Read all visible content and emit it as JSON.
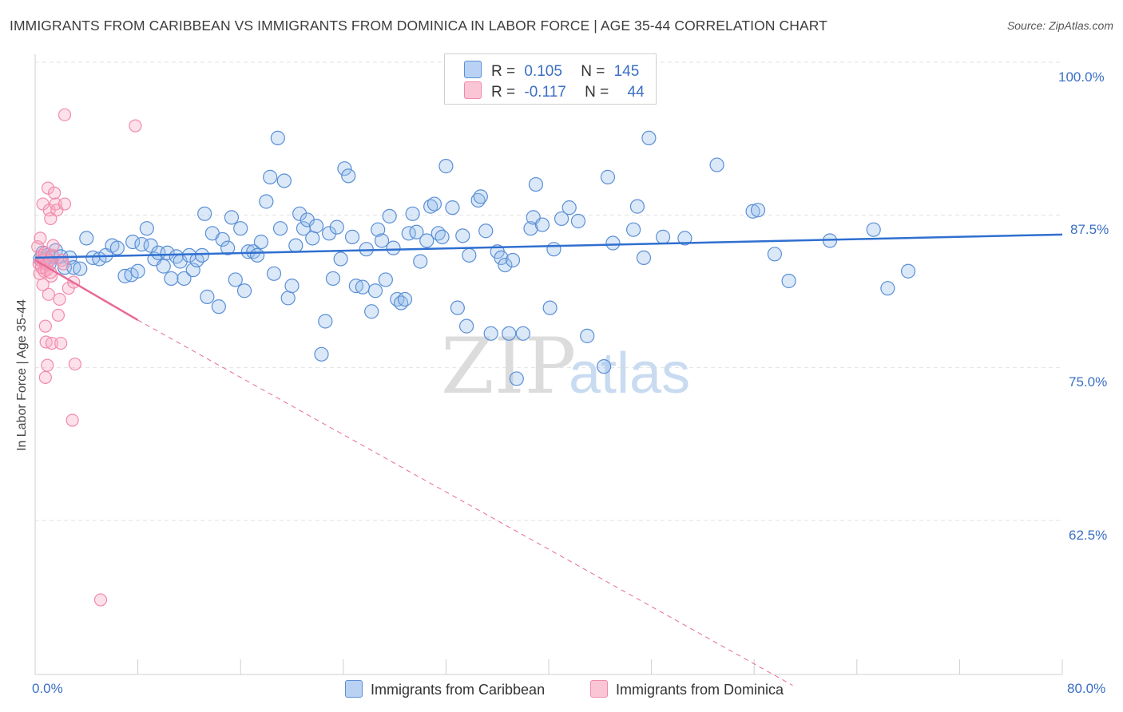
{
  "header": {
    "title": "IMMIGRANTS FROM CARIBBEAN VS IMMIGRANTS FROM DOMINICA IN LABOR FORCE | AGE 35-44 CORRELATION CHART",
    "source": "Source: ZipAtlas.com"
  },
  "watermark": {
    "zip": "ZIP",
    "atlas": "atlas"
  },
  "legend_top": {
    "caribbean": {
      "r_label": "R =",
      "r_value": "0.105",
      "n_label": "N =",
      "n_value": "145"
    },
    "dominica": {
      "r_label": "R =",
      "r_value": "-0.117",
      "n_label": "N =",
      "n_value": "44"
    }
  },
  "chart_data": {
    "type": "scatter",
    "title": "IMMIGRANTS FROM CARIBBEAN VS IMMIGRANTS FROM DOMINICA IN LABOR FORCE | AGE 35-44 CORRELATION CHART",
    "xlabel": "",
    "ylabel": "In Labor Force | Age 35-44",
    "xlim": [
      0,
      80
    ],
    "ylim": [
      50,
      102
    ],
    "x_tick_labels": [
      "0.0%",
      "80.0%"
    ],
    "y_ticks": [
      62.5,
      75.0,
      87.5,
      100.0
    ],
    "y_tick_labels": [
      "62.5%",
      "75.0%",
      "87.5%",
      "100.0%"
    ],
    "grid": "horizontal dashed",
    "legend_placement": "top-center and bottom",
    "colors": {
      "caribbean": "#5b8fd6",
      "caribbean_line": "#2f6fd0",
      "dominica": "#f28aab",
      "dominica_line": "#e86a94"
    },
    "series": [
      {
        "name": "Immigrants from Caribbean",
        "r": 0.105,
        "n": 145,
        "trend": {
          "x": [
            0,
            80
          ],
          "y": [
            84.0,
            85.9
          ]
        },
        "points": [
          [
            0.4,
            83.9
          ],
          [
            0.6,
            84.4
          ],
          [
            0.8,
            83.9
          ],
          [
            1.0,
            84.2
          ],
          [
            1.1,
            83.5
          ],
          [
            1.3,
            84.1
          ],
          [
            1.6,
            84.6
          ],
          [
            2.0,
            84.1
          ],
          [
            2.3,
            83.2
          ],
          [
            2.7,
            84.0
          ],
          [
            3.0,
            83.2
          ],
          [
            3.5,
            83.1
          ],
          [
            4.0,
            85.6
          ],
          [
            4.5,
            84.0
          ],
          [
            5.0,
            83.9
          ],
          [
            5.5,
            84.2
          ],
          [
            6.0,
            85.0
          ],
          [
            6.4,
            84.8
          ],
          [
            7.0,
            82.5
          ],
          [
            7.5,
            82.6
          ],
          [
            7.6,
            85.3
          ],
          [
            8.0,
            82.9
          ],
          [
            8.3,
            85.1
          ],
          [
            8.7,
            86.4
          ],
          [
            9.0,
            85.0
          ],
          [
            9.3,
            83.9
          ],
          [
            9.6,
            84.4
          ],
          [
            10.0,
            83.3
          ],
          [
            10.3,
            84.4
          ],
          [
            10.6,
            82.3
          ],
          [
            11.0,
            84.1
          ],
          [
            11.3,
            83.7
          ],
          [
            11.6,
            82.3
          ],
          [
            12.0,
            84.2
          ],
          [
            12.3,
            83.0
          ],
          [
            12.6,
            83.8
          ],
          [
            13.0,
            84.2
          ],
          [
            13.2,
            87.6
          ],
          [
            13.4,
            80.8
          ],
          [
            13.8,
            86.0
          ],
          [
            14.3,
            80.0
          ],
          [
            14.6,
            85.5
          ],
          [
            15.0,
            84.8
          ],
          [
            15.3,
            87.3
          ],
          [
            15.6,
            82.2
          ],
          [
            16.0,
            86.4
          ],
          [
            16.3,
            81.3
          ],
          [
            16.6,
            84.5
          ],
          [
            17.0,
            84.5
          ],
          [
            17.3,
            84.2
          ],
          [
            17.6,
            85.3
          ],
          [
            18.0,
            88.6
          ],
          [
            18.3,
            90.6
          ],
          [
            18.6,
            82.7
          ],
          [
            18.9,
            93.8
          ],
          [
            19.1,
            86.4
          ],
          [
            19.4,
            90.3
          ],
          [
            19.7,
            80.7
          ],
          [
            20.0,
            81.7
          ],
          [
            20.3,
            85.0
          ],
          [
            20.6,
            87.6
          ],
          [
            20.9,
            86.4
          ],
          [
            21.2,
            87.1
          ],
          [
            21.6,
            85.6
          ],
          [
            21.9,
            86.6
          ],
          [
            22.3,
            76.1
          ],
          [
            22.6,
            78.8
          ],
          [
            22.9,
            86.0
          ],
          [
            23.2,
            82.3
          ],
          [
            23.5,
            86.5
          ],
          [
            23.8,
            83.9
          ],
          [
            24.1,
            91.3
          ],
          [
            24.4,
            90.7
          ],
          [
            24.7,
            85.7
          ],
          [
            25.0,
            81.7
          ],
          [
            25.5,
            81.6
          ],
          [
            25.8,
            84.7
          ],
          [
            26.2,
            79.6
          ],
          [
            26.5,
            81.3
          ],
          [
            26.7,
            86.3
          ],
          [
            27.0,
            85.4
          ],
          [
            27.3,
            82.2
          ],
          [
            27.6,
            87.4
          ],
          [
            27.9,
            84.8
          ],
          [
            28.2,
            80.6
          ],
          [
            28.5,
            80.3
          ],
          [
            28.8,
            80.6
          ],
          [
            29.1,
            86.0
          ],
          [
            29.4,
            87.6
          ],
          [
            29.7,
            86.1
          ],
          [
            30.0,
            83.7
          ],
          [
            30.5,
            85.4
          ],
          [
            30.8,
            88.2
          ],
          [
            31.1,
            88.4
          ],
          [
            31.4,
            86.0
          ],
          [
            31.7,
            85.7
          ],
          [
            32.0,
            91.5
          ],
          [
            32.5,
            88.1
          ],
          [
            32.9,
            79.9
          ],
          [
            33.3,
            85.8
          ],
          [
            33.6,
            78.4
          ],
          [
            33.8,
            84.2
          ],
          [
            34.5,
            88.7
          ],
          [
            34.7,
            89.0
          ],
          [
            35.1,
            86.2
          ],
          [
            35.5,
            77.8
          ],
          [
            36.0,
            84.5
          ],
          [
            36.3,
            84.0
          ],
          [
            36.6,
            83.4
          ],
          [
            36.9,
            77.8
          ],
          [
            37.2,
            83.8
          ],
          [
            37.5,
            74.1
          ],
          [
            38.0,
            77.8
          ],
          [
            38.6,
            86.4
          ],
          [
            38.8,
            87.3
          ],
          [
            39.0,
            90.0
          ],
          [
            39.5,
            86.7
          ],
          [
            40.1,
            79.9
          ],
          [
            40.4,
            84.7
          ],
          [
            41.0,
            87.2
          ],
          [
            41.6,
            88.1
          ],
          [
            42.3,
            87.0
          ],
          [
            43.0,
            77.6
          ],
          [
            44.3,
            75.1
          ],
          [
            44.6,
            90.6
          ],
          [
            45.0,
            85.2
          ],
          [
            46.6,
            86.3
          ],
          [
            46.9,
            88.2
          ],
          [
            47.4,
            84.0
          ],
          [
            47.8,
            93.8
          ],
          [
            48.9,
            85.7
          ],
          [
            50.6,
            85.6
          ],
          [
            53.1,
            91.6
          ],
          [
            55.9,
            87.8
          ],
          [
            56.3,
            87.9
          ],
          [
            57.6,
            84.3
          ],
          [
            58.7,
            82.1
          ],
          [
            61.9,
            85.4
          ],
          [
            65.3,
            86.3
          ],
          [
            66.4,
            81.5
          ],
          [
            68.0,
            82.9
          ]
        ]
      },
      {
        "name": "Immigrants from Dominica",
        "r": -0.117,
        "n": 44,
        "trend_solid": {
          "x": [
            0,
            8
          ],
          "y": [
            83.8,
            78.9
          ]
        },
        "trend_dashed": {
          "x": [
            8,
            59
          ],
          "y": [
            78.9,
            49.0
          ]
        },
        "points": [
          [
            0.2,
            84.9
          ],
          [
            0.3,
            83.5
          ],
          [
            0.35,
            82.7
          ],
          [
            0.4,
            85.6
          ],
          [
            0.45,
            83.8
          ],
          [
            0.5,
            83.2
          ],
          [
            0.55,
            84.2
          ],
          [
            0.6,
            81.8
          ],
          [
            0.6,
            88.4
          ],
          [
            0.65,
            83.8
          ],
          [
            0.7,
            82.9
          ],
          [
            0.75,
            84.4
          ],
          [
            0.8,
            78.4
          ],
          [
            0.8,
            74.2
          ],
          [
            0.85,
            77.1
          ],
          [
            0.9,
            83.5
          ],
          [
            0.95,
            75.2
          ],
          [
            1.0,
            89.7
          ],
          [
            1.05,
            81.0
          ],
          [
            1.1,
            87.9
          ],
          [
            1.15,
            83.8
          ],
          [
            1.2,
            87.2
          ],
          [
            1.25,
            82.5
          ],
          [
            1.3,
            77.0
          ],
          [
            1.35,
            84.2
          ],
          [
            1.4,
            85.0
          ],
          [
            1.5,
            89.3
          ],
          [
            1.6,
            88.4
          ],
          [
            1.7,
            87.9
          ],
          [
            1.8,
            79.3
          ],
          [
            1.9,
            80.6
          ],
          [
            2.0,
            77.0
          ],
          [
            2.1,
            83.8
          ],
          [
            2.2,
            83.5
          ],
          [
            2.3,
            88.4
          ],
          [
            2.6,
            81.5
          ],
          [
            2.9,
            70.7
          ],
          [
            3.0,
            82.0
          ],
          [
            3.1,
            75.3
          ],
          [
            2.3,
            95.7
          ],
          [
            7.8,
            94.8
          ],
          [
            5.1,
            56.0
          ],
          [
            0.9,
            83.0
          ],
          [
            1.2,
            82.8
          ]
        ]
      }
    ]
  },
  "bottom_legend": {
    "caribbean": "Immigrants from Caribbean",
    "dominica": "Immigrants from Dominica"
  }
}
